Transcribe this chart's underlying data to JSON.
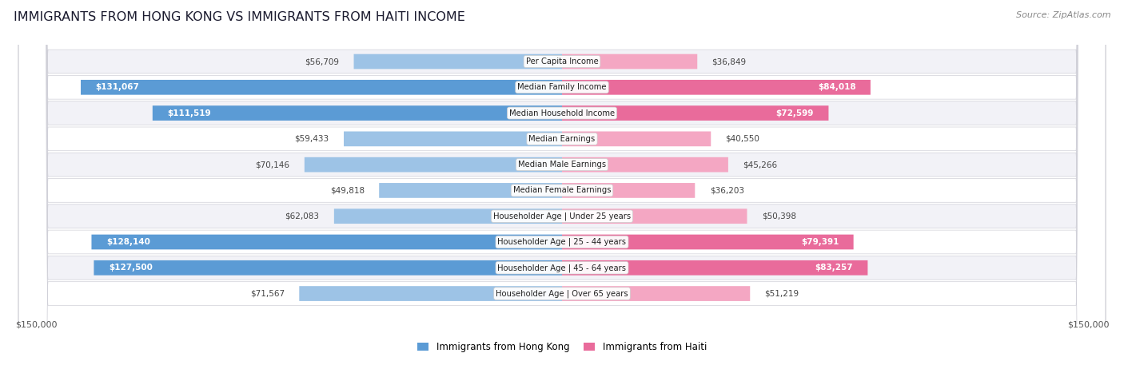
{
  "title": "IMMIGRANTS FROM HONG KONG VS IMMIGRANTS FROM HAITI INCOME",
  "source": "Source: ZipAtlas.com",
  "categories": [
    "Per Capita Income",
    "Median Family Income",
    "Median Household Income",
    "Median Earnings",
    "Median Male Earnings",
    "Median Female Earnings",
    "Householder Age | Under 25 years",
    "Householder Age | 25 - 44 years",
    "Householder Age | 45 - 64 years",
    "Householder Age | Over 65 years"
  ],
  "hk_values": [
    56709,
    131067,
    111519,
    59433,
    70146,
    49818,
    62083,
    128140,
    127500,
    71567
  ],
  "haiti_values": [
    36849,
    84018,
    72599,
    40550,
    45266,
    36203,
    50398,
    79391,
    83257,
    51219
  ],
  "hk_labels": [
    "$56,709",
    "$131,067",
    "$111,519",
    "$59,433",
    "$70,146",
    "$49,818",
    "$62,083",
    "$128,140",
    "$127,500",
    "$71,567"
  ],
  "haiti_labels": [
    "$36,849",
    "$84,018",
    "$72,599",
    "$40,550",
    "$45,266",
    "$36,203",
    "$50,398",
    "$79,391",
    "$83,257",
    "$51,219"
  ],
  "hk_color_large": "#5b9bd5",
  "hk_color_small": "#9dc3e6",
  "haiti_color_large": "#e96b9b",
  "haiti_color_small": "#f4a7c3",
  "max_value": 150000,
  "legend_hk": "Immigrants from Hong Kong",
  "legend_haiti": "Immigrants from Haiti",
  "xlabel_left": "$150,000",
  "xlabel_right": "$150,000",
  "background_color": "#ffffff",
  "row_bg_even": "#f2f2f7",
  "row_bg_odd": "#ffffff",
  "row_border": "#d0d0d8"
}
